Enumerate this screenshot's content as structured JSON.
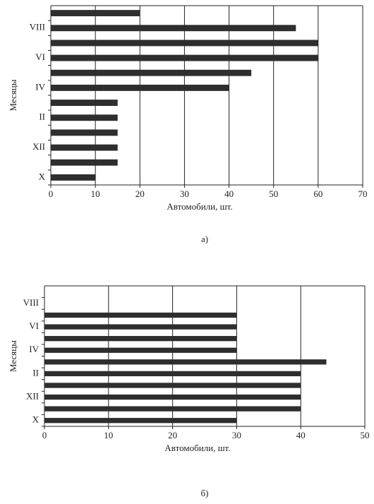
{
  "chart_data": [
    {
      "type": "bar",
      "orientation": "horizontal",
      "caption": "а)",
      "y_label": "Месяцы",
      "x_label": "Автомобили, шт.",
      "categories": [
        "X",
        null,
        "XII",
        null,
        "II",
        null,
        "IV",
        null,
        "VI",
        null,
        "VIII",
        null
      ],
      "values": [
        10,
        15,
        15,
        15,
        15,
        15,
        40,
        45,
        60,
        60,
        55,
        20
      ],
      "color": "#2e2e2e",
      "xlim": [
        0,
        70
      ],
      "xticks": [
        0,
        10,
        20,
        30,
        40,
        50,
        60,
        70
      ],
      "grid": true
    },
    {
      "type": "bar",
      "orientation": "horizontal",
      "caption": "б)",
      "y_label": "Месяцы",
      "x_label": "Автомобили, шт.",
      "categories": [
        "X",
        null,
        "XII",
        null,
        "II",
        null,
        "IV",
        null,
        "VI",
        null,
        "VIII",
        null
      ],
      "values": [
        30,
        40,
        40,
        40,
        40,
        44,
        30,
        30,
        30,
        30,
        null,
        null
      ],
      "color": "#2e2e2e",
      "xlim": [
        0,
        50
      ],
      "xticks": [
        0,
        10,
        20,
        30,
        40,
        50
      ],
      "grid": true
    }
  ]
}
